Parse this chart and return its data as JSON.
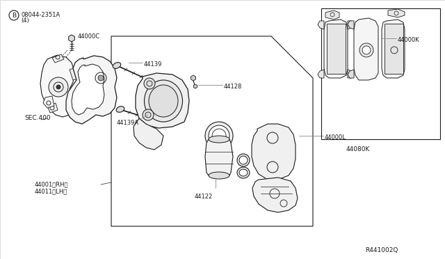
{
  "bg_color": "#ffffff",
  "line_color": "#1a1a1a",
  "gray_line": "#888888",
  "light_gray": "#aaaaaa",
  "fig_width": 6.4,
  "fig_height": 3.72,
  "dpi": 100,
  "labels": {
    "bolt_ref": "B",
    "bolt_part": "08044-2351A",
    "bolt_qty": "(4)",
    "44000C": "44000C",
    "SEC400": "SEC.400",
    "44139": "44139",
    "44128": "44128",
    "44000L": "44000L",
    "44139A": "44139A",
    "44122": "44122",
    "44001": "44001(RH)",
    "44011": "44011(LH)",
    "44000K": "44000K",
    "44080K": "44080K",
    "ref_code": "R441002Q"
  }
}
